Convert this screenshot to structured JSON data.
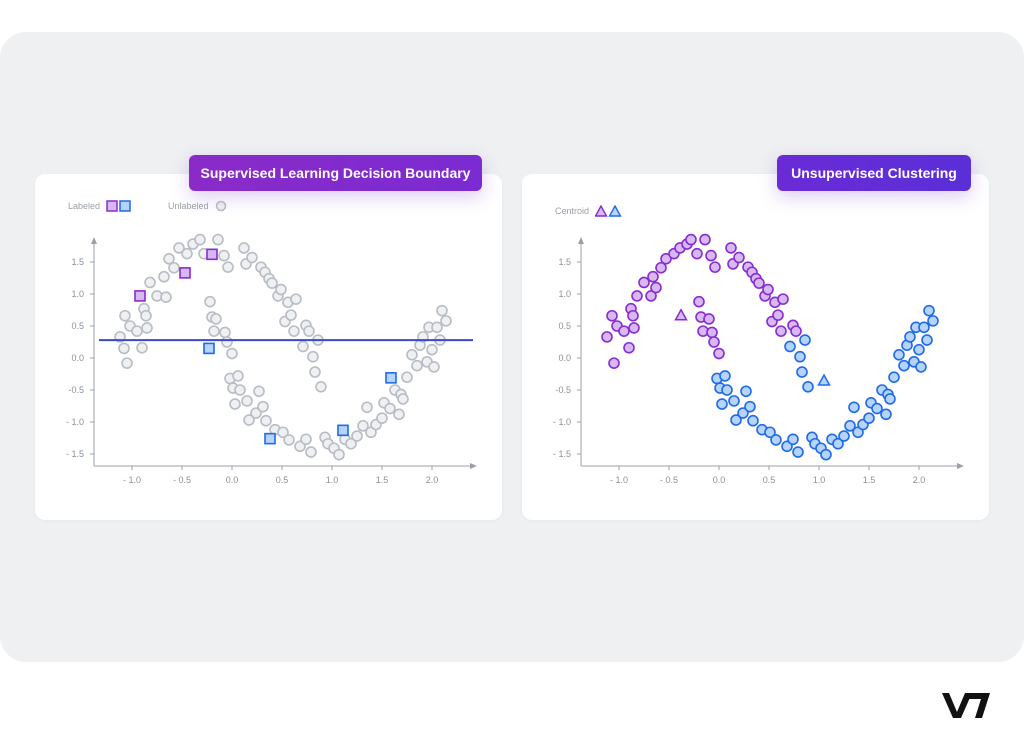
{
  "left_panel": {
    "title": "Supervised Learning Decision Boundary",
    "legend": {
      "labeled": "Labeled",
      "unlabeled": "Unlabeled"
    }
  },
  "right_panel": {
    "title": "Unsupervised Clustering",
    "legend": {
      "centroid": "Centroid"
    }
  },
  "colors": {
    "purple": "#8a2bd0",
    "purple_fill": "#d6b8f2",
    "blue": "#1e6bea",
    "blue_fill": "#b6d3fa",
    "gray": "#b8bcc4",
    "gray_fill": "#eef0f2",
    "boundary": "#3d47c9"
  },
  "logo": "V7",
  "chart_data": [
    {
      "type": "scatter",
      "title": "Supervised Learning Decision Boundary",
      "x_ticks": [
        "- 1.0",
        "- 0.5",
        "0.0",
        "0.5",
        "1.0",
        "1.5",
        "2.0"
      ],
      "y_ticks": [
        "1.5",
        "1.0",
        "0.5",
        "0.0",
        "-0.5",
        "- 1.0",
        "- 1.5"
      ],
      "xlim": [
        -1.35,
        2.4
      ],
      "ylim": [
        -1.7,
        1.8
      ],
      "decision_boundary_y": 0.28,
      "labeled_purple": [
        [
          -0.92,
          0.97
        ],
        [
          -0.47,
          1.33
        ],
        [
          -0.2,
          1.62
        ]
      ],
      "labeled_blue": [
        [
          -0.23,
          0.15
        ],
        [
          0.38,
          -1.26
        ],
        [
          1.11,
          -1.13
        ],
        [
          1.59,
          -0.31
        ]
      ],
      "unlabeled": [
        [
          -1.12,
          0.33
        ],
        [
          -1.08,
          0.15
        ],
        [
          -1.05,
          -0.08
        ],
        [
          -1.07,
          0.66
        ],
        [
          -1.02,
          0.5
        ],
        [
          -0.95,
          0.42
        ],
        [
          -0.9,
          0.16
        ],
        [
          -0.88,
          0.77
        ],
        [
          -0.85,
          0.47
        ],
        [
          -0.86,
          0.66
        ],
        [
          -0.82,
          1.18
        ],
        [
          -0.75,
          0.97
        ],
        [
          -0.68,
          1.27
        ],
        [
          -0.66,
          0.95
        ],
        [
          -0.63,
          1.55
        ],
        [
          -0.58,
          1.41
        ],
        [
          -0.53,
          1.72
        ],
        [
          -0.45,
          1.63
        ],
        [
          -0.39,
          1.78
        ],
        [
          -0.32,
          1.85
        ],
        [
          -0.28,
          1.63
        ],
        [
          -0.22,
          0.88
        ],
        [
          -0.2,
          0.64
        ],
        [
          -0.18,
          0.42
        ],
        [
          -0.16,
          0.61
        ],
        [
          -0.14,
          1.85
        ],
        [
          -0.08,
          1.6
        ],
        [
          -0.07,
          0.4
        ],
        [
          -0.05,
          0.25
        ],
        [
          -0.04,
          1.42
        ],
        [
          -0.02,
          -0.32
        ],
        [
          0.0,
          0.07
        ],
        [
          0.01,
          -0.47
        ],
        [
          0.03,
          -0.72
        ],
        [
          0.06,
          -0.28
        ],
        [
          0.08,
          -0.5
        ],
        [
          0.12,
          1.72
        ],
        [
          0.14,
          1.47
        ],
        [
          0.15,
          -0.67
        ],
        [
          0.17,
          -0.97
        ],
        [
          0.2,
          1.57
        ],
        [
          0.24,
          -0.86
        ],
        [
          0.27,
          -0.52
        ],
        [
          0.29,
          1.42
        ],
        [
          0.31,
          -0.76
        ],
        [
          0.33,
          1.34
        ],
        [
          0.34,
          -0.98
        ],
        [
          0.37,
          1.24
        ],
        [
          0.4,
          1.17
        ],
        [
          0.43,
          -1.12
        ],
        [
          0.46,
          0.97
        ],
        [
          0.49,
          1.07
        ],
        [
          0.51,
          -1.16
        ],
        [
          0.53,
          0.57
        ],
        [
          0.56,
          0.87
        ],
        [
          0.57,
          -1.28
        ],
        [
          0.59,
          0.67
        ],
        [
          0.62,
          0.42
        ],
        [
          0.64,
          0.92
        ],
        [
          0.68,
          -1.38
        ],
        [
          0.71,
          0.18
        ],
        [
          0.74,
          0.51
        ],
        [
          0.74,
          -1.27
        ],
        [
          0.77,
          0.42
        ],
        [
          0.79,
          -1.47
        ],
        [
          0.81,
          0.02
        ],
        [
          0.83,
          -0.22
        ],
        [
          0.86,
          0.28
        ],
        [
          0.89,
          -0.45
        ],
        [
          0.93,
          -1.24
        ],
        [
          0.96,
          -1.34
        ],
        [
          1.02,
          -1.41
        ],
        [
          1.07,
          -1.51
        ],
        [
          1.13,
          -1.27
        ],
        [
          1.19,
          -1.34
        ],
        [
          1.25,
          -1.22
        ],
        [
          1.31,
          -1.06
        ],
        [
          1.35,
          -0.77
        ],
        [
          1.39,
          -1.16
        ],
        [
          1.44,
          -1.04
        ],
        [
          1.5,
          -0.94
        ],
        [
          1.52,
          -0.7
        ],
        [
          1.58,
          -0.79
        ],
        [
          1.63,
          -0.5
        ],
        [
          1.67,
          -0.88
        ],
        [
          1.69,
          -0.57
        ],
        [
          1.71,
          -0.64
        ],
        [
          1.75,
          -0.3
        ],
        [
          1.8,
          0.05
        ],
        [
          1.85,
          -0.12
        ],
        [
          1.88,
          0.2
        ],
        [
          1.91,
          0.33
        ],
        [
          1.95,
          -0.06
        ],
        [
          1.97,
          0.48
        ],
        [
          2.0,
          0.13
        ],
        [
          2.02,
          -0.14
        ],
        [
          2.05,
          0.48
        ],
        [
          2.08,
          0.28
        ],
        [
          2.1,
          0.74
        ],
        [
          2.14,
          0.58
        ]
      ]
    },
    {
      "type": "scatter",
      "title": "Unsupervised Clustering",
      "x_ticks": [
        "- 1.0",
        "- 0.5",
        "0.0",
        "0.5",
        "1.0",
        "1.5",
        "2.0"
      ],
      "y_ticks": [
        "1.5",
        "1.0",
        "0.5",
        "0.0",
        "-0.5",
        "- 1.0",
        "- 1.5"
      ],
      "xlim": [
        -1.35,
        2.4
      ],
      "ylim": [
        -1.7,
        1.8
      ],
      "centroids": {
        "purple": [
          -0.38,
          0.66
        ],
        "blue": [
          1.05,
          -0.36
        ]
      },
      "cluster_purple": [
        [
          -1.12,
          0.33
        ],
        [
          -1.05,
          -0.08
        ],
        [
          -1.07,
          0.66
        ],
        [
          -1.02,
          0.5
        ],
        [
          -0.95,
          0.42
        ],
        [
          -0.9,
          0.16
        ],
        [
          -0.88,
          0.77
        ],
        [
          -0.85,
          0.47
        ],
        [
          -0.86,
          0.66
        ],
        [
          -0.82,
          0.97
        ],
        [
          -0.75,
          1.18
        ],
        [
          -0.68,
          0.97
        ],
        [
          -0.66,
          1.27
        ],
        [
          -0.63,
          1.1
        ],
        [
          -0.58,
          1.41
        ],
        [
          -0.53,
          1.55
        ],
        [
          -0.45,
          1.63
        ],
        [
          -0.39,
          1.72
        ],
        [
          -0.32,
          1.78
        ],
        [
          -0.28,
          1.85
        ],
        [
          -0.22,
          1.63
        ],
        [
          -0.2,
          0.88
        ],
        [
          -0.18,
          0.64
        ],
        [
          -0.16,
          0.42
        ],
        [
          -0.14,
          1.85
        ],
        [
          -0.1,
          0.61
        ],
        [
          -0.08,
          1.6
        ],
        [
          -0.07,
          0.4
        ],
        [
          -0.05,
          0.25
        ],
        [
          -0.04,
          1.42
        ],
        [
          0.0,
          0.07
        ],
        [
          0.12,
          1.72
        ],
        [
          0.14,
          1.47
        ],
        [
          0.2,
          1.57
        ],
        [
          0.29,
          1.42
        ],
        [
          0.33,
          1.34
        ],
        [
          0.37,
          1.24
        ],
        [
          0.4,
          1.17
        ],
        [
          0.46,
          0.97
        ],
        [
          0.49,
          1.07
        ],
        [
          0.53,
          0.57
        ],
        [
          0.56,
          0.87
        ],
        [
          0.59,
          0.67
        ],
        [
          0.62,
          0.42
        ],
        [
          0.64,
          0.92
        ],
        [
          0.74,
          0.51
        ],
        [
          0.77,
          0.42
        ]
      ],
      "cluster_blue": [
        [
          -0.02,
          -0.32
        ],
        [
          0.01,
          -0.47
        ],
        [
          0.03,
          -0.72
        ],
        [
          0.06,
          -0.28
        ],
        [
          0.08,
          -0.5
        ],
        [
          0.15,
          -0.67
        ],
        [
          0.17,
          -0.97
        ],
        [
          0.24,
          -0.86
        ],
        [
          0.27,
          -0.52
        ],
        [
          0.31,
          -0.76
        ],
        [
          0.34,
          -0.98
        ],
        [
          0.43,
          -1.12
        ],
        [
          0.51,
          -1.16
        ],
        [
          0.57,
          -1.28
        ],
        [
          0.68,
          -1.38
        ],
        [
          0.71,
          0.18
        ],
        [
          0.74,
          -1.27
        ],
        [
          0.79,
          -1.47
        ],
        [
          0.81,
          0.02
        ],
        [
          0.83,
          -0.22
        ],
        [
          0.86,
          0.28
        ],
        [
          0.89,
          -0.45
        ],
        [
          0.93,
          -1.24
        ],
        [
          0.96,
          -1.34
        ],
        [
          1.02,
          -1.41
        ],
        [
          1.07,
          -1.51
        ],
        [
          1.13,
          -1.27
        ],
        [
          1.19,
          -1.34
        ],
        [
          1.25,
          -1.22
        ],
        [
          1.31,
          -1.06
        ],
        [
          1.35,
          -0.77
        ],
        [
          1.39,
          -1.16
        ],
        [
          1.44,
          -1.04
        ],
        [
          1.5,
          -0.94
        ],
        [
          1.52,
          -0.7
        ],
        [
          1.58,
          -0.79
        ],
        [
          1.63,
          -0.5
        ],
        [
          1.67,
          -0.88
        ],
        [
          1.69,
          -0.57
        ],
        [
          1.71,
          -0.64
        ],
        [
          1.75,
          -0.3
        ],
        [
          1.8,
          0.05
        ],
        [
          1.85,
          -0.12
        ],
        [
          1.88,
          0.2
        ],
        [
          1.91,
          0.33
        ],
        [
          1.95,
          -0.06
        ],
        [
          1.97,
          0.48
        ],
        [
          2.0,
          0.13
        ],
        [
          2.02,
          -0.14
        ],
        [
          2.05,
          0.48
        ],
        [
          2.08,
          0.28
        ],
        [
          2.1,
          0.74
        ],
        [
          2.14,
          0.58
        ]
      ]
    }
  ]
}
